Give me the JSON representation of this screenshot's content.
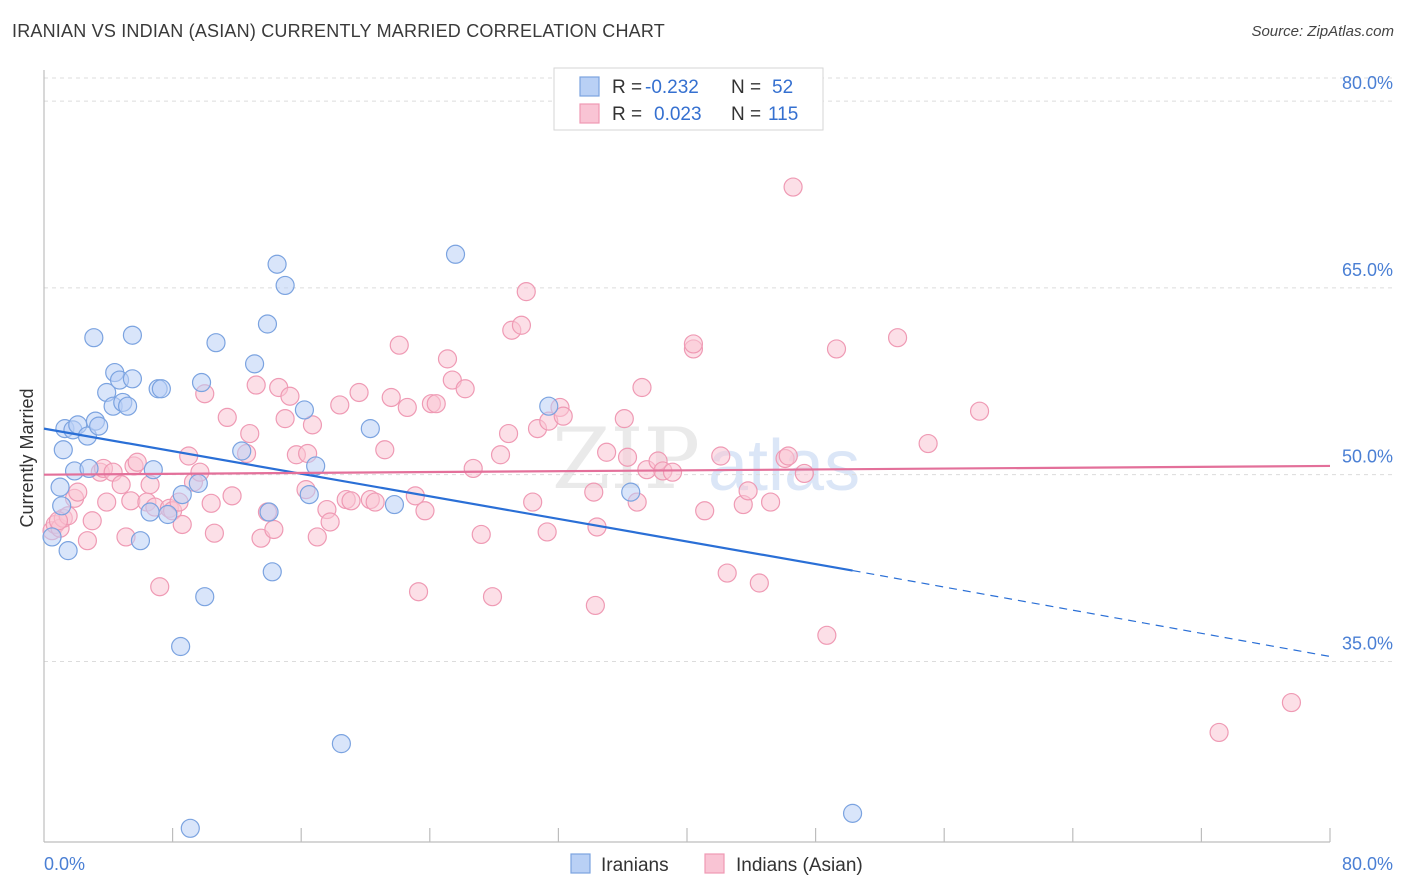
{
  "chart_data": {
    "type": "scatter",
    "title": "IRANIAN VS INDIAN (ASIAN) CURRENTLY MARRIED CORRELATION CHART",
    "source": "Source: ZipAtlas.com",
    "xlabel": "",
    "ylabel": "Currently Married",
    "xlim": [
      0,
      80
    ],
    "ylim": [
      20.5,
      82.5
    ],
    "x_tick_labels": [
      "0.0%",
      "80.0%"
    ],
    "y_ticks": [
      35,
      50,
      65,
      80
    ],
    "y_tick_labels": [
      "35.0%",
      "50.0%",
      "65.0%",
      "80.0%"
    ],
    "watermark": "ZIPatlas",
    "legend": {
      "rows": [
        {
          "r_label": "R = ",
          "r_value": "-0.232",
          "n_label": "N = ",
          "n_value": "52"
        },
        {
          "r_label": "R = ",
          "r_value": "0.023",
          "n_label": "N = ",
          "n_value": "115"
        }
      ]
    },
    "bottom_legend": [
      "Iranians",
      "Indians (Asian)"
    ],
    "colors": {
      "iranians_fill": "#b9d0f5",
      "iranians_stroke": "#7ba3e0",
      "iranians_line": "#2a6fd6",
      "indians_fill": "#f9c4d4",
      "indians_stroke": "#ef9ab4",
      "indians_line": "#e3709a",
      "tick_text": "#4a7fd4"
    },
    "series": [
      {
        "name": "Iranians",
        "points": [
          [
            0.5,
            45
          ],
          [
            1,
            49
          ],
          [
            1.1,
            47.5
          ],
          [
            1.2,
            52
          ],
          [
            1.3,
            53.7
          ],
          [
            1.5,
            43.9
          ],
          [
            1.8,
            53.6
          ],
          [
            1.9,
            50.3
          ],
          [
            2.1,
            54
          ],
          [
            2.7,
            53.1
          ],
          [
            2.8,
            50.5
          ],
          [
            3.1,
            61
          ],
          [
            3.2,
            54.3
          ],
          [
            3.4,
            53.9
          ],
          [
            3.9,
            56.6
          ],
          [
            4.3,
            55.5
          ],
          [
            4.4,
            58.2
          ],
          [
            4.7,
            57.6
          ],
          [
            4.9,
            55.8
          ],
          [
            5.2,
            55.5
          ],
          [
            5.5,
            57.7
          ],
          [
            5.5,
            61.2
          ],
          [
            6,
            44.7
          ],
          [
            6.6,
            47
          ],
          [
            6.8,
            50.4
          ],
          [
            7.1,
            56.9
          ],
          [
            7.3,
            56.9
          ],
          [
            7.7,
            46.8
          ],
          [
            8.5,
            36.2
          ],
          [
            8.6,
            48.4
          ],
          [
            9.1,
            21.6
          ],
          [
            9.6,
            49.3
          ],
          [
            9.8,
            57.4
          ],
          [
            10,
            40.2
          ],
          [
            10.7,
            60.6
          ],
          [
            12.3,
            51.9
          ],
          [
            13.1,
            58.9
          ],
          [
            13.9,
            62.1
          ],
          [
            14,
            47
          ],
          [
            14.2,
            42.2
          ],
          [
            14.5,
            66.9
          ],
          [
            15,
            65.2
          ],
          [
            16.2,
            55.2
          ],
          [
            16.5,
            48.4
          ],
          [
            16.9,
            50.7
          ],
          [
            18.5,
            28.4
          ],
          [
            20.3,
            53.7
          ],
          [
            21.8,
            47.6
          ],
          [
            25.6,
            67.7
          ],
          [
            31.4,
            55.5
          ],
          [
            36.5,
            48.6
          ],
          [
            50.3,
            22.8
          ]
        ],
        "trend": {
          "x0": 0,
          "y0": 53.7,
          "x1": 50.3,
          "y1": 42.3,
          "x_dash_end": 80,
          "y_dash_end": 35.4
        }
      },
      {
        "name": "Indians (Asian)",
        "points": [
          [
            0.5,
            45.5
          ],
          [
            0.7,
            46
          ],
          [
            1,
            45.7
          ],
          [
            1.2,
            46.5
          ],
          [
            1.5,
            46.7
          ],
          [
            1.9,
            48.1
          ],
          [
            2.1,
            48.6
          ],
          [
            2.7,
            44.7
          ],
          [
            3,
            46.3
          ],
          [
            3.5,
            50.2
          ],
          [
            3.7,
            50.5
          ],
          [
            3.9,
            47.8
          ],
          [
            4.3,
            50.2
          ],
          [
            4.8,
            49.2
          ],
          [
            5.1,
            45
          ],
          [
            5.4,
            47.9
          ],
          [
            5.6,
            50.7
          ],
          [
            5.8,
            51
          ],
          [
            6.4,
            47.8
          ],
          [
            6.6,
            49.2
          ],
          [
            6.9,
            47.4
          ],
          [
            7.2,
            41
          ],
          [
            7.8,
            47.3
          ],
          [
            8,
            47.1
          ],
          [
            8.4,
            47.8
          ],
          [
            8.6,
            46
          ],
          [
            9,
            51.5
          ],
          [
            9.3,
            49.4
          ],
          [
            9.7,
            50.2
          ],
          [
            10,
            56.5
          ],
          [
            10.4,
            47.7
          ],
          [
            10.6,
            45.3
          ],
          [
            11.4,
            54.6
          ],
          [
            11.7,
            48.3
          ],
          [
            12.6,
            51.7
          ],
          [
            12.8,
            53.3
          ],
          [
            13.2,
            57.2
          ],
          [
            13.5,
            44.9
          ],
          [
            13.9,
            47
          ],
          [
            14.3,
            45.6
          ],
          [
            14.6,
            57
          ],
          [
            15,
            54.5
          ],
          [
            15.3,
            56.3
          ],
          [
            15.7,
            51.6
          ],
          [
            16.3,
            48.8
          ],
          [
            16.4,
            51.7
          ],
          [
            16.7,
            54
          ],
          [
            17,
            45
          ],
          [
            17.6,
            47.2
          ],
          [
            17.8,
            46.2
          ],
          [
            18.4,
            55.6
          ],
          [
            18.8,
            48
          ],
          [
            19.1,
            47.9
          ],
          [
            19.6,
            56.6
          ],
          [
            20.3,
            48
          ],
          [
            20.6,
            47.8
          ],
          [
            21.2,
            52
          ],
          [
            21.6,
            56.2
          ],
          [
            22.1,
            60.4
          ],
          [
            22.6,
            55.4
          ],
          [
            23.1,
            48.3
          ],
          [
            23.3,
            40.6
          ],
          [
            23.7,
            47.1
          ],
          [
            24.1,
            55.7
          ],
          [
            24.4,
            55.7
          ],
          [
            25.1,
            59.3
          ],
          [
            25.4,
            57.6
          ],
          [
            26.2,
            56.9
          ],
          [
            26.7,
            50.5
          ],
          [
            27.2,
            45.2
          ],
          [
            27.9,
            40.2
          ],
          [
            28.4,
            51.6
          ],
          [
            28.9,
            53.3
          ],
          [
            29.1,
            61.6
          ],
          [
            29.7,
            62
          ],
          [
            30,
            64.7
          ],
          [
            30.4,
            47.8
          ],
          [
            30.7,
            53.7
          ],
          [
            31.3,
            45.4
          ],
          [
            31.4,
            54.3
          ],
          [
            32.1,
            55.4
          ],
          [
            32.3,
            54.7
          ],
          [
            34.2,
            48.6
          ],
          [
            34.3,
            39.5
          ],
          [
            34.4,
            45.8
          ],
          [
            35,
            51.8
          ],
          [
            36.1,
            54.5
          ],
          [
            36.3,
            51.4
          ],
          [
            36.9,
            47.8
          ],
          [
            37.2,
            57
          ],
          [
            37.5,
            50.4
          ],
          [
            38.2,
            51.1
          ],
          [
            38.5,
            50.3
          ],
          [
            39.1,
            50.2
          ],
          [
            40.4,
            60.1
          ],
          [
            40.4,
            60.5
          ],
          [
            41.1,
            47.1
          ],
          [
            42.1,
            51.5
          ],
          [
            42.5,
            42.1
          ],
          [
            43.5,
            47.6
          ],
          [
            43.8,
            48.7
          ],
          [
            44.5,
            41.3
          ],
          [
            45.2,
            47.8
          ],
          [
            46.1,
            51.3
          ],
          [
            46.3,
            51.5
          ],
          [
            46.6,
            73.1
          ],
          [
            47.3,
            50.1
          ],
          [
            48.7,
            37.1
          ],
          [
            49.3,
            60.1
          ],
          [
            53.1,
            61
          ],
          [
            55,
            52.5
          ],
          [
            58.2,
            55.1
          ],
          [
            73.1,
            29.3
          ],
          [
            77.6,
            31.7
          ],
          [
            0.9,
            46.3
          ]
        ],
        "trend": {
          "x0": 0,
          "y0": 50.0,
          "x1": 80,
          "y1": 50.7
        }
      }
    ]
  }
}
